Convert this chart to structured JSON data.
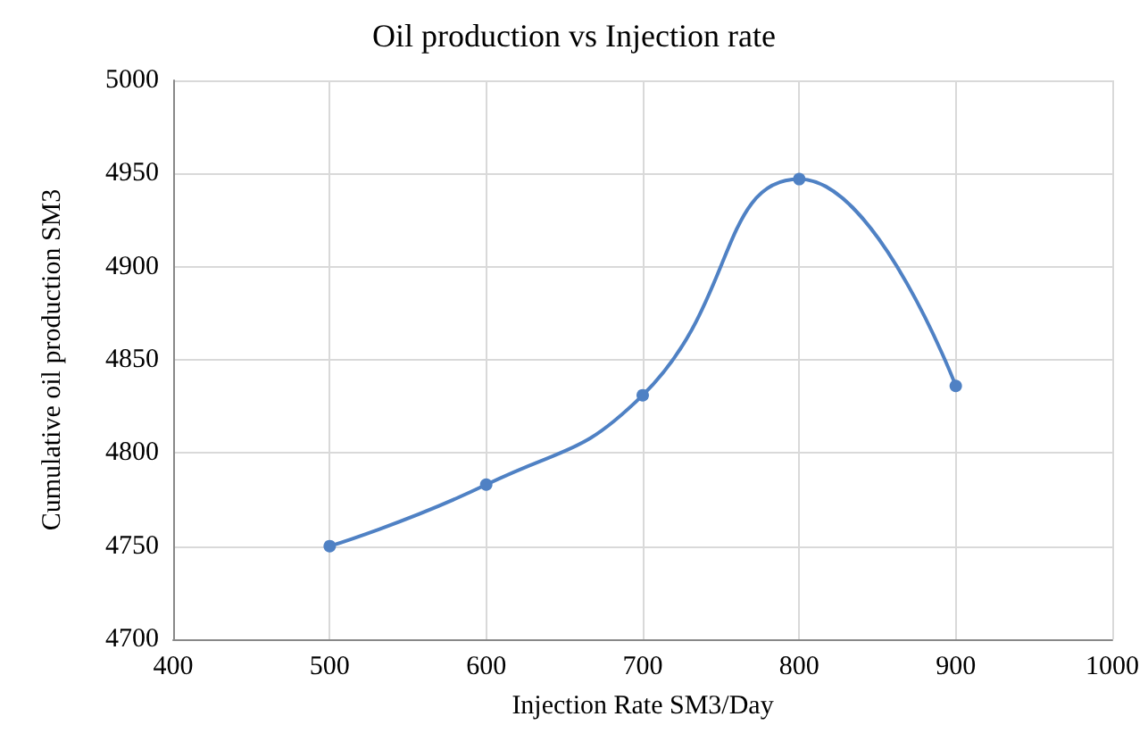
{
  "chart_data": {
    "type": "line",
    "title": "Oil production vs Injection rate",
    "xlabel": "Injection Rate SM3/Day",
    "ylabel": "Cumulative oil production SM3",
    "x": [
      500,
      600,
      700,
      800,
      900
    ],
    "series": [
      {
        "color": "#4f81c4",
        "values": [
          4750,
          4783,
          4831,
          4947,
          4836
        ]
      }
    ],
    "xlim": [
      400,
      1000
    ],
    "xticks": [
      400,
      500,
      600,
      700,
      800,
      900,
      1000
    ],
    "ylim": [
      4700,
      5000
    ],
    "yticks": [
      4700,
      4750,
      4800,
      4850,
      4900,
      4950,
      5000
    ],
    "grid": true,
    "marker": "circle",
    "line_style": "solid"
  }
}
